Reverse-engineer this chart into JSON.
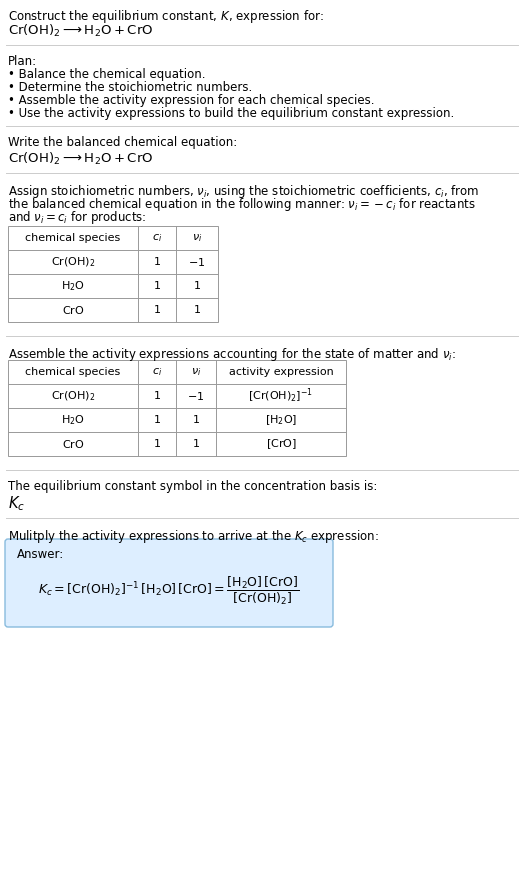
{
  "title_line1": "Construct the equilibrium constant, $K$, expression for:",
  "title_line2": "$\\mathrm{Cr(OH)_2} \\longrightarrow \\mathrm{H_2O + CrO}$",
  "plan_header": "Plan:",
  "plan_bullets": [
    "Balance the chemical equation.",
    "Determine the stoichiometric numbers.",
    "Assemble the activity expression for each chemical species.",
    "Use the activity expressions to build the equilibrium constant expression."
  ],
  "balanced_eq_header": "Write the balanced chemical equation:",
  "balanced_eq": "$\\mathrm{Cr(OH)_2} \\longrightarrow \\mathrm{H_2O + CrO}$",
  "stoich_intro_lines": [
    "Assign stoichiometric numbers, $\\nu_i$, using the stoichiometric coefficients, $c_i$, from",
    "the balanced chemical equation in the following manner: $\\nu_i = -c_i$ for reactants",
    "and $\\nu_i = c_i$ for products:"
  ],
  "table1_headers": [
    "chemical species",
    "$c_i$",
    "$\\nu_i$"
  ],
  "table1_rows": [
    [
      "$\\mathrm{Cr(OH)_2}$",
      "1",
      "$-1$"
    ],
    [
      "$\\mathrm{H_2O}$",
      "1",
      "1"
    ],
    [
      "$\\mathrm{CrO}$",
      "1",
      "1"
    ]
  ],
  "assemble_intro": "Assemble the activity expressions accounting for the state of matter and $\\nu_i$:",
  "table2_headers": [
    "chemical species",
    "$c_i$",
    "$\\nu_i$",
    "activity expression"
  ],
  "table2_rows": [
    [
      "$\\mathrm{Cr(OH)_2}$",
      "1",
      "$-1$",
      "$[\\mathrm{Cr(OH)_2}]^{-1}$"
    ],
    [
      "$\\mathrm{H_2O}$",
      "1",
      "1",
      "$[\\mathrm{H_2O}]$"
    ],
    [
      "$\\mathrm{CrO}$",
      "1",
      "1",
      "$[\\mathrm{CrO}]$"
    ]
  ],
  "kc_header": "The equilibrium constant symbol in the concentration basis is:",
  "kc_symbol": "$K_c$",
  "multiply_header": "Mulitply the activity expressions to arrive at the $K_c$ expression:",
  "answer_label": "Answer:",
  "answer_eq": "$K_c = [\\mathrm{Cr(OH)_2}]^{-1}\\,[\\mathrm{H_2O}]\\,[\\mathrm{CrO}] = \\dfrac{[\\mathrm{H_2O}]\\,[\\mathrm{CrO}]}{[\\mathrm{Cr(OH)_2}]}$",
  "answer_box_color": "#ddeeff",
  "answer_box_border": "#88bbdd",
  "bg_color": "#ffffff",
  "text_color": "#000000",
  "table_border_color": "#999999",
  "separator_color": "#cccccc",
  "font_size": 8.5,
  "eq_font_size": 9.5
}
